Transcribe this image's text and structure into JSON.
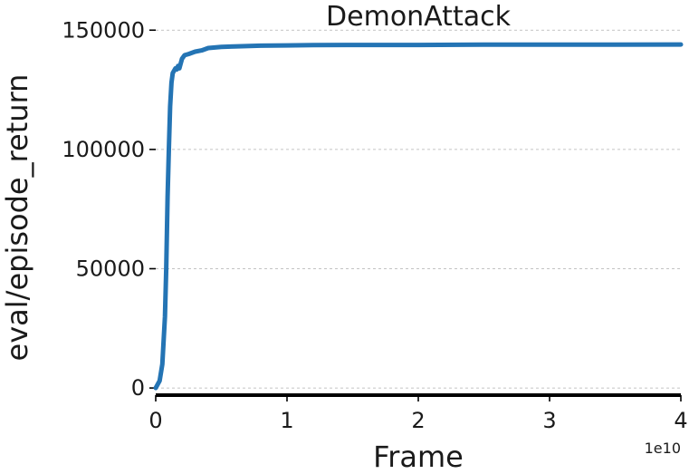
{
  "chart_data": {
    "type": "line",
    "title": "DemonAttack",
    "xlabel": "Frame",
    "ylabel": "eval/episode_return",
    "x_offset_label": "1e10",
    "xlim": [
      0,
      4
    ],
    "ylim": [
      -3000,
      152000
    ],
    "xticks": [
      0,
      1,
      2,
      3,
      4
    ],
    "xtick_labels": [
      "0",
      "1",
      "2",
      "3",
      "4"
    ],
    "yticks": [
      0,
      50000,
      100000,
      150000
    ],
    "ytick_labels": [
      "0",
      "50000",
      "100000",
      "150000"
    ],
    "grid": true,
    "series": [
      {
        "color": "#2474b4",
        "x": [
          0.0,
          0.03,
          0.05,
          0.07,
          0.08,
          0.09,
          0.1,
          0.11,
          0.12,
          0.13,
          0.14,
          0.15,
          0.16,
          0.17,
          0.18,
          0.2,
          0.22,
          0.25,
          0.3,
          0.35,
          0.4,
          0.5,
          0.6,
          0.8,
          1.0,
          1.2,
          1.5,
          2.0,
          2.5,
          3.0,
          3.5,
          4.0
        ],
        "y": [
          0,
          3000,
          10000,
          30000,
          50000,
          80000,
          100000,
          118000,
          128000,
          132000,
          133000,
          134000,
          133500,
          135000,
          134000,
          138000,
          139500,
          140000,
          141000,
          141500,
          142500,
          143000,
          143200,
          143500,
          143600,
          143700,
          143800,
          143800,
          143900,
          143900,
          143900,
          144000
        ]
      }
    ]
  }
}
